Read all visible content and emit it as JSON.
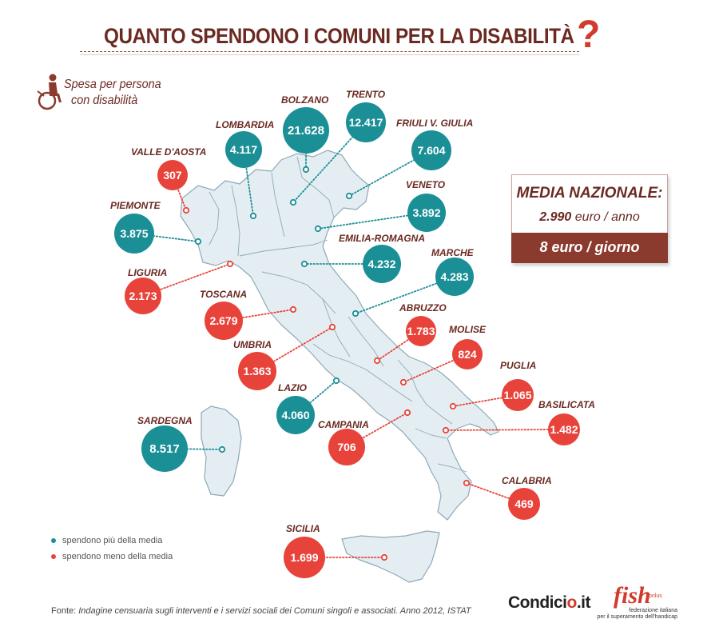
{
  "title": "QUANTO SPENDONO I COMUNI PER LA DISABILITÀ",
  "title_mark": "?",
  "subtitle_line1": "Spesa per persona",
  "subtitle_line2": "con disabilità",
  "average": {
    "title": "MEDIA NAZIONALE:",
    "year_value": "2.990",
    "year_unit": "euro / anno",
    "day_value": "8 euro / giorno"
  },
  "legend": {
    "above": "spendono più della media",
    "below": "spendono meno della media"
  },
  "source_label": "Fonte:",
  "source_text": "Indagine censuaria sugli interventi e i servizi sociali dei Comuni singoli e associati. Anno 2012, ISTAT",
  "brand": {
    "condicio_a": "Condici",
    "condicio_b": "o",
    "condicio_c": ".it",
    "fish": "fish",
    "onlus": "onlus",
    "fish_sub1": "federazione italiana",
    "fish_sub2": "per il superamento dell'handicap"
  },
  "colors": {
    "above": "#1b8f96",
    "below": "#e8433a",
    "map": "#e4eef2",
    "map_stroke": "#8fa9b6",
    "text": "#6b2a22"
  },
  "icon": "wheelchair-icon",
  "chart_data": {
    "type": "map",
    "title": "QUANTO SPENDONO I COMUNI PER LA DISABILITÀ",
    "unit": "euro",
    "average": 2990,
    "regions": [
      {
        "name": "VALLE D'AOSTA",
        "label": "307",
        "value": 307,
        "group": "below"
      },
      {
        "name": "LOMBARDIA",
        "label": "4.117",
        "value": 4117,
        "group": "above"
      },
      {
        "name": "BOLZANO",
        "label": "21.628",
        "value": 21628,
        "group": "above"
      },
      {
        "name": "TRENTO",
        "label": "12.417",
        "value": 12417,
        "group": "above"
      },
      {
        "name": "FRIULI V. GIULIA",
        "label": "7.604",
        "value": 7604,
        "group": "above"
      },
      {
        "name": "PIEMONTE",
        "label": "3.875",
        "value": 3875,
        "group": "above"
      },
      {
        "name": "VENETO",
        "label": "3.892",
        "value": 3892,
        "group": "above"
      },
      {
        "name": "LIGURIA",
        "label": "2.173",
        "value": 2173,
        "group": "below"
      },
      {
        "name": "EMILIA-ROMAGNA",
        "label": "4.232",
        "value": 4232,
        "group": "above"
      },
      {
        "name": "MARCHE",
        "label": "4.283",
        "value": 4283,
        "group": "above"
      },
      {
        "name": "TOSCANA",
        "label": "2.679",
        "value": 2679,
        "group": "below"
      },
      {
        "name": "ABRUZZO",
        "label": "1.783",
        "value": 1783,
        "group": "below"
      },
      {
        "name": "UMBRIA",
        "label": "1.363",
        "value": 1363,
        "group": "below"
      },
      {
        "name": "MOLISE",
        "label": "824",
        "value": 824,
        "group": "below"
      },
      {
        "name": "PUGLIA",
        "label": "1.065",
        "value": 1065,
        "group": "below"
      },
      {
        "name": "LAZIO",
        "label": "4.060",
        "value": 4060,
        "group": "above"
      },
      {
        "name": "BASILICATA",
        "label": "1.482",
        "value": 1482,
        "group": "below"
      },
      {
        "name": "CAMPANIA",
        "label": "706",
        "value": 706,
        "group": "below"
      },
      {
        "name": "SARDEGNA",
        "label": "8.517",
        "value": 8517,
        "group": "above"
      },
      {
        "name": "CALABRIA",
        "label": "469",
        "value": 469,
        "group": "below"
      },
      {
        "name": "SICILIA",
        "label": "1.699",
        "value": 1699,
        "group": "below"
      }
    ]
  }
}
